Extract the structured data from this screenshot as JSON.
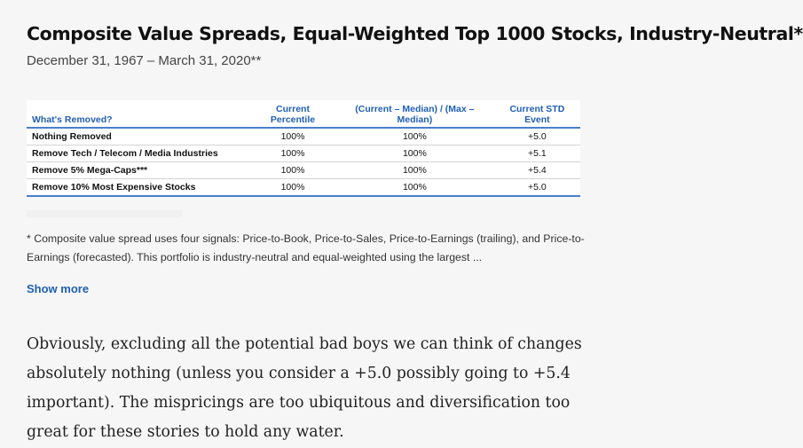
{
  "article": {
    "title": "Composite Value Spreads, Equal-Weighted Top 1000 Stocks, Industry-Neutral*",
    "subtitle": "December 31, 1967 – March 31, 2020**",
    "table": {
      "headers": [
        "What's Removed?",
        "Current Percentile",
        "(Current – Median) / (Max – Median)",
        "Current STD Event"
      ],
      "rows": [
        [
          "Nothing Removed",
          "100%",
          "100%",
          "+5.0"
        ],
        [
          "Remove Tech / Telecom / Media Industries",
          "100%",
          "100%",
          "+5.1"
        ],
        [
          "Remove 5% Mega-Caps***",
          "100%",
          "100%",
          "+5.4"
        ],
        [
          "Remove 10% Most Expensive Stocks",
          "100%",
          "100%",
          "+5.0"
        ]
      ]
    },
    "footnote": "* Composite value spread uses four signals: Price-to-Book, Price-to-Sales, Price-to-Earnings (trailing), and Price-to-Earnings (forecasted). This portfolio is industry-neutral and equal-weighted using the largest ...",
    "show_more_label": "Show more",
    "body_paragraph": "Obviously, excluding all the potential bad boys we can think of changes absolutely nothing (unless you consider a +5.0 possibly going to +5.4 important). The mispricings are too ubiquitous and diversification too great for these stories to hold any water."
  },
  "colors": {
    "accent": "#1f5fb5",
    "rule": "#4a7fcb",
    "background": "#f6f6f6"
  }
}
